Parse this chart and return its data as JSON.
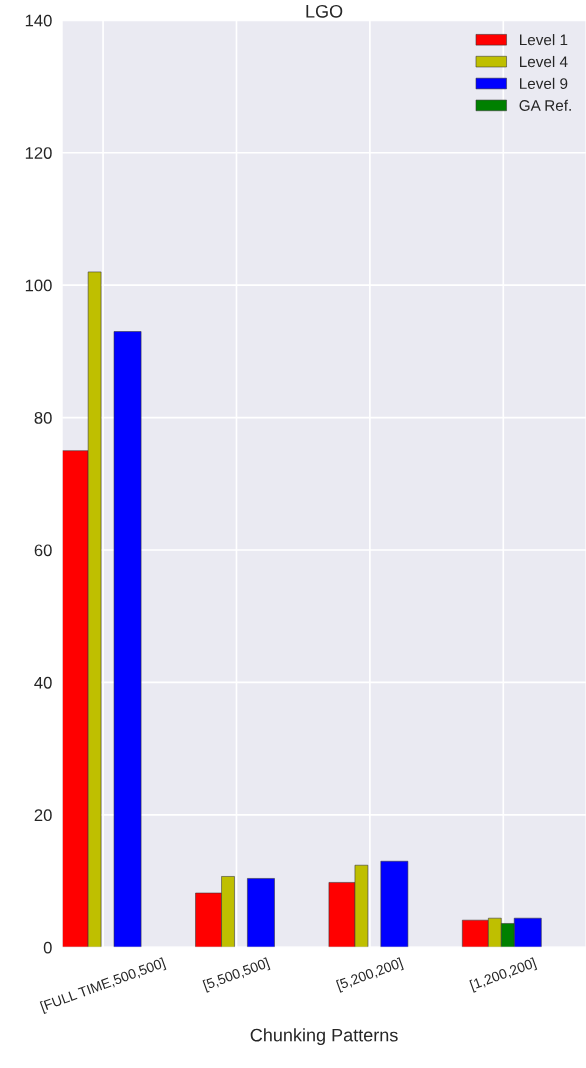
{
  "chart_data": {
    "type": "bar",
    "title": "LGO",
    "xlabel": "Chunking Patterns",
    "categories": [
      "[FULL TIME,500,500]",
      "[5,500,500]",
      "[5,200,200]",
      "[1,200,200]"
    ],
    "series": [
      {
        "name": "Level 1",
        "color": "#ff0000",
        "values": [
          75,
          8.2,
          9.8,
          4.1
        ]
      },
      {
        "name": "Level 4",
        "color": "#bfbf00",
        "values": [
          102,
          10.7,
          12.4,
          4.4
        ]
      },
      {
        "name": "Level 9",
        "color": "#0000ff",
        "values": [
          93,
          10.4,
          13.0,
          4.4
        ]
      },
      {
        "name": "GA Ref.",
        "color": "#008000",
        "values": [
          null,
          null,
          null,
          3.6
        ]
      }
    ],
    "ylim": [
      0,
      140
    ],
    "yticks": [
      0,
      20,
      40,
      60,
      80,
      100,
      120,
      140
    ],
    "grid": true,
    "legend": "top right"
  }
}
